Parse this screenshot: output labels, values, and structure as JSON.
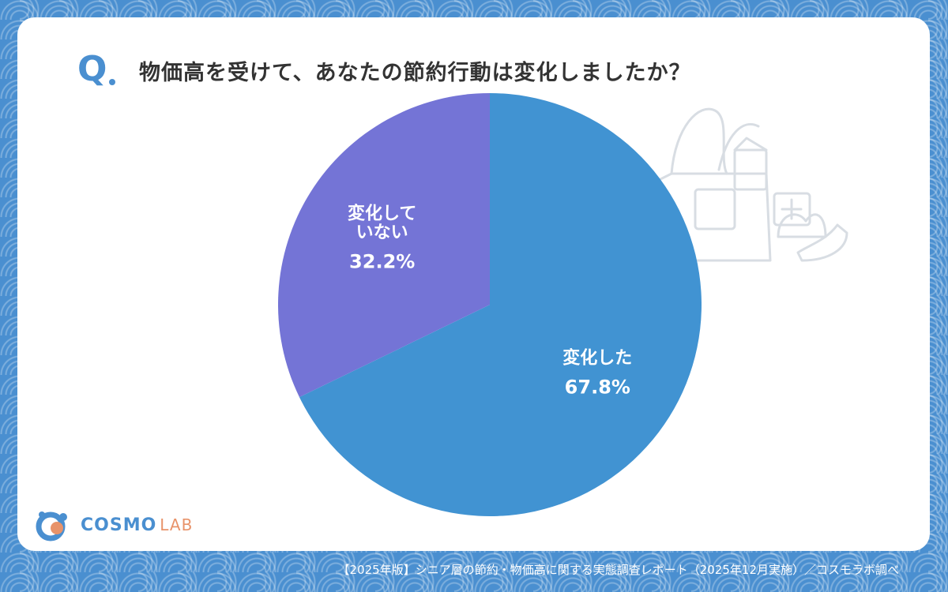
{
  "header": {
    "q_label": "Q",
    "question": "物価高を受けて、あなたの節約行動は変化しましたか？"
  },
  "logo": {
    "brand": "COSMO",
    "suffix": "LAB"
  },
  "footer": {
    "source": "【2025年版】シニア層の節約・物価高に関する実態調査レポート（2025年12月実施）／コスモラボ調べ"
  },
  "colors": {
    "accent": "#4a8fd0",
    "slice_changed": "#4193d2",
    "slice_not_changed": "#7474d6"
  },
  "chart_data": {
    "type": "pie",
    "title": "物価高を受けて、あなたの節約行動は変化しましたか？",
    "slices": [
      {
        "label": "変化した",
        "value": 67.8,
        "value_label": "67.8%",
        "color": "#4193d2"
      },
      {
        "label": "変化して\nいない",
        "value": 32.2,
        "value_label": "32.2%",
        "color": "#7474d6"
      }
    ],
    "start": "12 o'clock",
    "direction": "clockwise"
  }
}
